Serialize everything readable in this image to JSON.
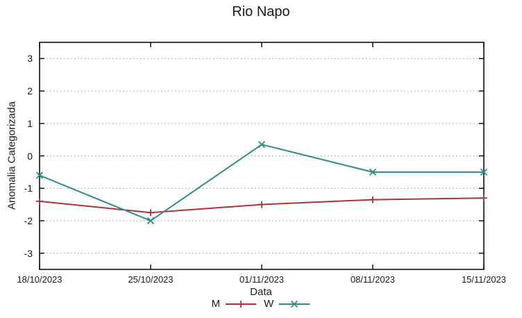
{
  "chart_data": {
    "type": "line",
    "title": "Rio Napo",
    "xlabel": "Data",
    "ylabel": "Anomalia Categorizada",
    "categories": [
      "18/10/2023",
      "25/10/2023",
      "01/11/2023",
      "08/11/2023",
      "15/11/2023"
    ],
    "series": [
      {
        "name": "M",
        "color": "#b03333",
        "marker": "plus",
        "values": [
          -1.4,
          -1.75,
          -1.5,
          -1.35,
          -1.3
        ]
      },
      {
        "name": "W",
        "color": "#2e8b8b",
        "marker": "cross",
        "values": [
          -0.6,
          -2.0,
          0.35,
          -0.5,
          -0.5
        ]
      }
    ],
    "yticks": [
      -3,
      -2,
      -1,
      0,
      1,
      2,
      3
    ],
    "ylim": [
      -3.5,
      3.5
    ],
    "grid": {
      "y": true,
      "x": false,
      "style": "dotted",
      "color": "#999999"
    },
    "legend_position": "bottom-center",
    "border_color": "#000000",
    "text_color": "#1a1a1a"
  }
}
